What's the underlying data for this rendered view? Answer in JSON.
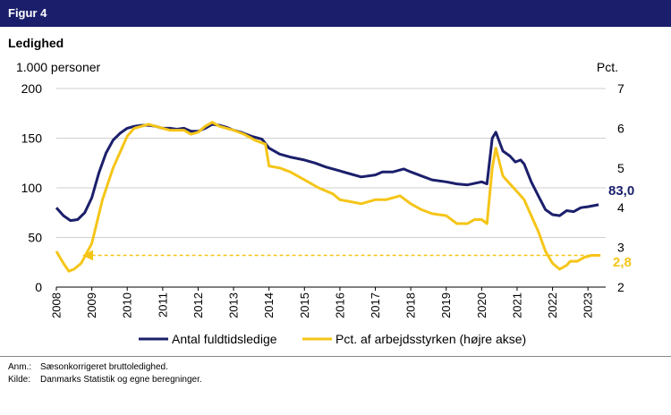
{
  "figure": {
    "label": "Figur 4",
    "title": "Ledighed"
  },
  "chart_data": {
    "type": "line",
    "title": "Ledighed",
    "y_left_label": "1.000 personer",
    "y_right_label": "Pct.",
    "y_left_range": [
      0,
      200
    ],
    "y_right_range": [
      2,
      7
    ],
    "y_left_ticks": [
      "0",
      "50",
      "100",
      "150",
      "200"
    ],
    "y_right_ticks": [
      "2",
      "3",
      "4",
      "5",
      "6",
      "7"
    ],
    "x_range": [
      2008,
      2023.5
    ],
    "x_ticks": [
      "2008",
      "2009",
      "2010",
      "2011",
      "2012",
      "2013",
      "2014",
      "2015",
      "2016",
      "2017",
      "2018",
      "2019",
      "2020",
      "2021",
      "2022",
      "2023"
    ],
    "series": [
      {
        "name": "Antal fuldtidsledige",
        "axis": "left",
        "color": "#1b1f6b",
        "end_label": "83,0",
        "points": [
          [
            2008.0,
            80
          ],
          [
            2008.2,
            72
          ],
          [
            2008.4,
            67
          ],
          [
            2008.6,
            68
          ],
          [
            2008.8,
            75
          ],
          [
            2009.0,
            90
          ],
          [
            2009.2,
            115
          ],
          [
            2009.4,
            135
          ],
          [
            2009.6,
            148
          ],
          [
            2009.8,
            155
          ],
          [
            2010.0,
            160
          ],
          [
            2010.2,
            162
          ],
          [
            2010.4,
            163
          ],
          [
            2010.6,
            163
          ],
          [
            2010.8,
            162
          ],
          [
            2011.0,
            160
          ],
          [
            2011.2,
            160
          ],
          [
            2011.4,
            159
          ],
          [
            2011.6,
            160
          ],
          [
            2011.8,
            157
          ],
          [
            2012.0,
            157
          ],
          [
            2012.2,
            160
          ],
          [
            2012.4,
            164
          ],
          [
            2012.6,
            163
          ],
          [
            2012.8,
            161
          ],
          [
            2013.0,
            158
          ],
          [
            2013.2,
            156
          ],
          [
            2013.5,
            152
          ],
          [
            2013.8,
            149
          ],
          [
            2014.0,
            140
          ],
          [
            2014.3,
            134
          ],
          [
            2014.6,
            131
          ],
          [
            2015.0,
            128
          ],
          [
            2015.3,
            125
          ],
          [
            2015.6,
            121
          ],
          [
            2016.0,
            117
          ],
          [
            2016.3,
            114
          ],
          [
            2016.6,
            111
          ],
          [
            2017.0,
            113
          ],
          [
            2017.2,
            116
          ],
          [
            2017.5,
            116
          ],
          [
            2017.8,
            119
          ],
          [
            2018.0,
            116
          ],
          [
            2018.3,
            112
          ],
          [
            2018.6,
            108
          ],
          [
            2019.0,
            106
          ],
          [
            2019.3,
            104
          ],
          [
            2019.6,
            103
          ],
          [
            2020.0,
            106
          ],
          [
            2020.15,
            104
          ],
          [
            2020.3,
            150
          ],
          [
            2020.4,
            156
          ],
          [
            2020.6,
            137
          ],
          [
            2020.8,
            132
          ],
          [
            2020.95,
            126
          ],
          [
            2021.1,
            128
          ],
          [
            2021.2,
            124
          ],
          [
            2021.4,
            106
          ],
          [
            2021.6,
            92
          ],
          [
            2021.8,
            78
          ],
          [
            2022.0,
            73
          ],
          [
            2022.2,
            72
          ],
          [
            2022.4,
            77
          ],
          [
            2022.6,
            76
          ],
          [
            2022.8,
            80
          ],
          [
            2023.0,
            81
          ],
          [
            2023.3,
            83
          ]
        ]
      },
      {
        "name": "Pct. af arbejdsstyrken (højre akse)",
        "axis": "right",
        "color": "#f5c518",
        "end_label": "2,8",
        "points": [
          [
            2008.0,
            2.9
          ],
          [
            2008.2,
            2.6
          ],
          [
            2008.35,
            2.4
          ],
          [
            2008.5,
            2.45
          ],
          [
            2008.7,
            2.6
          ],
          [
            2009.0,
            3.1
          ],
          [
            2009.3,
            4.2
          ],
          [
            2009.6,
            5.0
          ],
          [
            2009.8,
            5.4
          ],
          [
            2010.0,
            5.8
          ],
          [
            2010.2,
            6.0
          ],
          [
            2010.4,
            6.05
          ],
          [
            2010.6,
            6.1
          ],
          [
            2010.8,
            6.05
          ],
          [
            2011.0,
            6.0
          ],
          [
            2011.2,
            5.95
          ],
          [
            2011.4,
            5.95
          ],
          [
            2011.6,
            5.95
          ],
          [
            2011.8,
            5.85
          ],
          [
            2012.0,
            5.9
          ],
          [
            2012.2,
            6.05
          ],
          [
            2012.4,
            6.15
          ],
          [
            2012.6,
            6.05
          ],
          [
            2012.8,
            6.0
          ],
          [
            2013.0,
            5.95
          ],
          [
            2013.3,
            5.85
          ],
          [
            2013.6,
            5.7
          ],
          [
            2013.9,
            5.6
          ],
          [
            2014.0,
            5.05
          ],
          [
            2014.3,
            5.0
          ],
          [
            2014.6,
            4.9
          ],
          [
            2015.0,
            4.7
          ],
          [
            2015.4,
            4.5
          ],
          [
            2015.8,
            4.35
          ],
          [
            2016.0,
            4.2
          ],
          [
            2016.3,
            4.15
          ],
          [
            2016.6,
            4.1
          ],
          [
            2017.0,
            4.2
          ],
          [
            2017.3,
            4.2
          ],
          [
            2017.7,
            4.3
          ],
          [
            2018.0,
            4.1
          ],
          [
            2018.3,
            3.95
          ],
          [
            2018.6,
            3.85
          ],
          [
            2019.0,
            3.8
          ],
          [
            2019.3,
            3.6
          ],
          [
            2019.6,
            3.6
          ],
          [
            2019.8,
            3.7
          ],
          [
            2020.0,
            3.7
          ],
          [
            2020.15,
            3.6
          ],
          [
            2020.3,
            5.0
          ],
          [
            2020.4,
            5.5
          ],
          [
            2020.6,
            4.8
          ],
          [
            2020.8,
            4.6
          ],
          [
            2021.0,
            4.4
          ],
          [
            2021.2,
            4.2
          ],
          [
            2021.4,
            3.8
          ],
          [
            2021.6,
            3.4
          ],
          [
            2021.8,
            2.9
          ],
          [
            2022.0,
            2.6
          ],
          [
            2022.2,
            2.45
          ],
          [
            2022.4,
            2.55
          ],
          [
            2022.5,
            2.65
          ],
          [
            2022.7,
            2.65
          ],
          [
            2022.9,
            2.75
          ],
          [
            2023.1,
            2.8
          ],
          [
            2023.35,
            2.8
          ]
        ]
      }
    ],
    "reference_line": {
      "axis": "right",
      "value": 2.8,
      "from_x": 2009.0,
      "to_x": 2023.35,
      "style": "dashed",
      "arrow": "start",
      "color": "#f5c518"
    },
    "legend": [
      "Antal fuldtidsledige",
      "Pct. af arbejdsstyrken (højre akse)"
    ],
    "legend_position": "bottom"
  },
  "notes": [
    {
      "key": "Anm.:",
      "text": "Sæsonkorrigeret bruttoledighed."
    },
    {
      "key": "Kilde:",
      "text": "Danmarks Statistik og egne beregninger."
    }
  ]
}
